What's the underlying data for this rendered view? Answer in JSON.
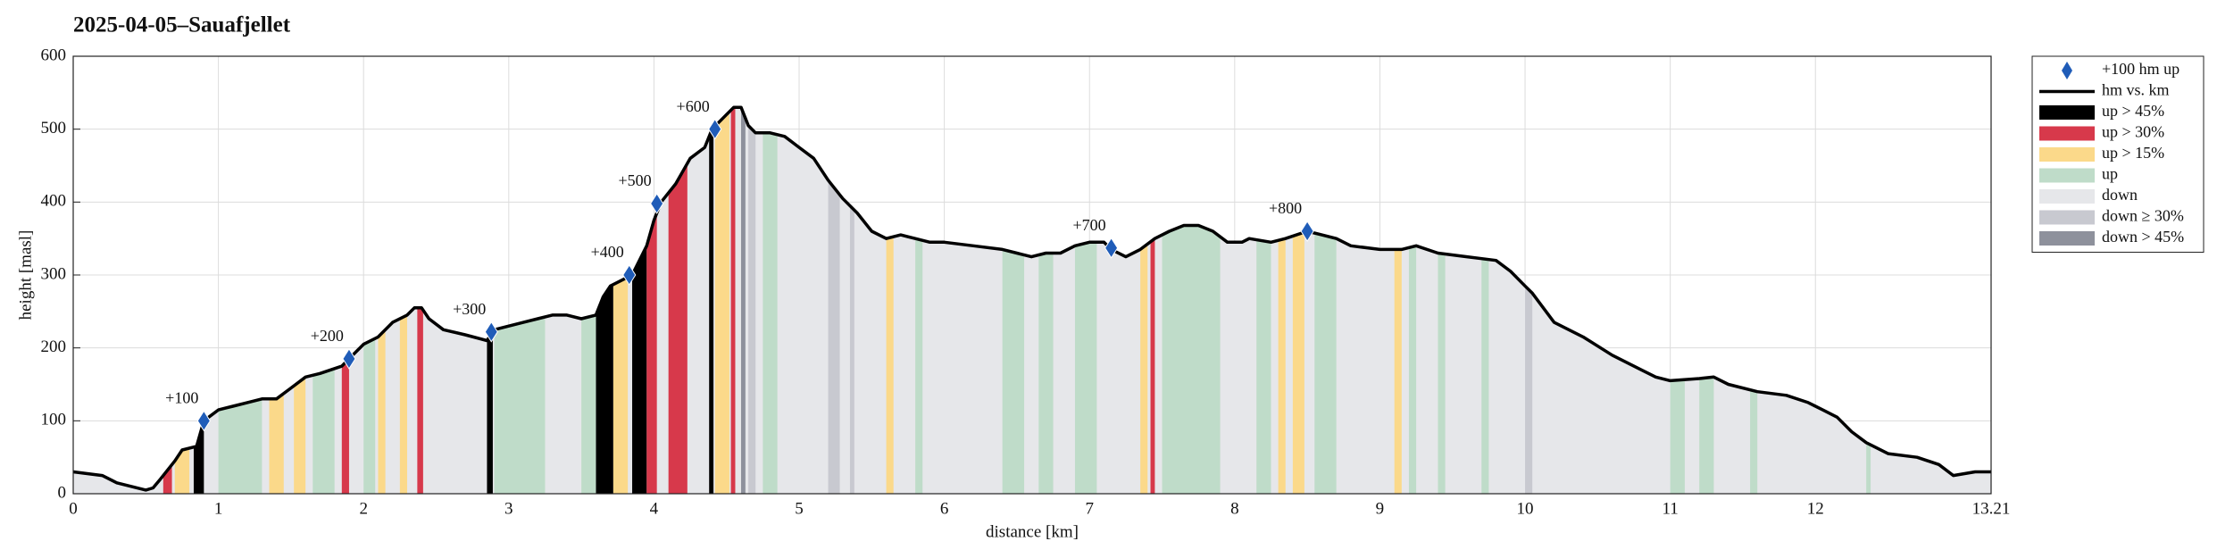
{
  "chart_data": {
    "type": "area",
    "title": "2025-04-05–Sauafjellet",
    "xlabel": "distance [km]",
    "ylabel": "height [masl]",
    "xlim": [
      0,
      13.21
    ],
    "ylim": [
      0,
      600
    ],
    "xticks": [
      0,
      1,
      2,
      3,
      4,
      5,
      6,
      7,
      8,
      9,
      10,
      11,
      12,
      13.21
    ],
    "yticks": [
      0,
      100,
      200,
      300,
      400,
      500,
      600
    ],
    "grid": true,
    "legend": "outside-right",
    "series": [
      {
        "name": "+100 hm up",
        "type": "scatter",
        "color": "#1f5cb8",
        "x": [
          0.9,
          1.9,
          2.88,
          3.83,
          4.02,
          4.42,
          7.15,
          8.5
        ],
        "values": [
          100,
          185,
          222,
          300,
          398,
          500,
          337,
          360
        ],
        "value_labels": [
          "+100",
          "+200",
          "+300",
          "+400",
          "+500",
          "+600",
          "+700",
          "+800"
        ]
      },
      {
        "name": "hm vs. km",
        "type": "line",
        "color": "#000000",
        "x": [
          0,
          0.2,
          0.3,
          0.5,
          0.55,
          0.6,
          0.7,
          0.75,
          0.85,
          0.9,
          1.0,
          1.1,
          1.2,
          1.3,
          1.4,
          1.5,
          1.6,
          1.7,
          1.85,
          1.9,
          2.0,
          2.1,
          2.2,
          2.3,
          2.35,
          2.4,
          2.45,
          2.55,
          2.7,
          2.85,
          2.9,
          3.0,
          3.1,
          3.2,
          3.3,
          3.4,
          3.5,
          3.6,
          3.65,
          3.7,
          3.8,
          3.85,
          3.95,
          4.0,
          4.05,
          4.15,
          4.25,
          4.35,
          4.4,
          4.5,
          4.55,
          4.6,
          4.65,
          4.7,
          4.8,
          4.9,
          5.0,
          5.1,
          5.2,
          5.3,
          5.4,
          5.5,
          5.6,
          5.7,
          5.8,
          5.9,
          6.0,
          6.2,
          6.4,
          6.5,
          6.6,
          6.7,
          6.8,
          6.9,
          7.0,
          7.1,
          7.15,
          7.25,
          7.35,
          7.45,
          7.55,
          7.65,
          7.75,
          7.85,
          7.95,
          8.05,
          8.1,
          8.25,
          8.35,
          8.5,
          8.6,
          8.7,
          8.8,
          9.0,
          9.15,
          9.25,
          9.4,
          9.6,
          9.8,
          9.9,
          10.0,
          10.05,
          10.2,
          10.4,
          10.6,
          10.8,
          10.9,
          11.0,
          11.2,
          11.3,
          11.4,
          11.6,
          11.8,
          11.95,
          12.05,
          12.15,
          12.25,
          12.35,
          12.5,
          12.7,
          12.85,
          12.95,
          13.1,
          13.21
        ],
        "values": [
          30,
          25,
          15,
          5,
          8,
          20,
          45,
          60,
          65,
          100,
          115,
          120,
          125,
          130,
          130,
          145,
          160,
          165,
          175,
          185,
          205,
          215,
          235,
          245,
          255,
          255,
          240,
          225,
          218,
          210,
          225,
          230,
          235,
          240,
          245,
          245,
          240,
          245,
          270,
          285,
          295,
          300,
          340,
          375,
          400,
          425,
          460,
          475,
          500,
          520,
          530,
          530,
          505,
          495,
          495,
          490,
          475,
          460,
          430,
          405,
          385,
          360,
          350,
          355,
          350,
          345,
          345,
          340,
          335,
          330,
          325,
          330,
          330,
          340,
          345,
          345,
          335,
          325,
          335,
          350,
          360,
          368,
          368,
          360,
          345,
          345,
          350,
          345,
          350,
          360,
          355,
          350,
          340,
          335,
          335,
          340,
          330,
          325,
          320,
          305,
          285,
          275,
          235,
          215,
          190,
          170,
          160,
          155,
          158,
          160,
          150,
          140,
          135,
          125,
          115,
          105,
          85,
          70,
          55,
          50,
          40,
          25,
          30,
          30
        ]
      }
    ],
    "bands": [
      {
        "name": "up > 45%",
        "color": "#000000",
        "ranges": [
          [
            0.83,
            0.9
          ],
          [
            2.85,
            2.89
          ],
          [
            3.6,
            3.72
          ],
          [
            3.85,
            3.95
          ],
          [
            4.38,
            4.41
          ]
        ]
      },
      {
        "name": "up > 30%",
        "color": "#d7394b",
        "ranges": [
          [
            0.62,
            0.68
          ],
          [
            1.85,
            1.9
          ],
          [
            2.37,
            2.41
          ],
          [
            3.95,
            4.02
          ],
          [
            4.1,
            4.23
          ],
          [
            4.53,
            4.56
          ],
          [
            7.42,
            7.45
          ]
        ]
      },
      {
        "name": "up > 15%",
        "color": "#fbd98a",
        "ranges": [
          [
            0.7,
            0.8
          ],
          [
            1.35,
            1.45
          ],
          [
            1.52,
            1.6
          ],
          [
            2.1,
            2.15
          ],
          [
            2.25,
            2.3
          ],
          [
            3.72,
            3.82
          ],
          [
            4.42,
            4.52
          ],
          [
            5.6,
            5.65
          ],
          [
            7.35,
            7.4
          ],
          [
            8.3,
            8.35
          ],
          [
            8.4,
            8.48
          ],
          [
            9.1,
            9.15
          ]
        ]
      },
      {
        "name": "up",
        "color": "#bfdcc9",
        "ranges": [
          [
            1.0,
            1.3
          ],
          [
            1.65,
            1.8
          ],
          [
            2.0,
            2.08
          ],
          [
            2.9,
            3.25
          ],
          [
            3.5,
            3.6
          ],
          [
            4.75,
            4.85
          ],
          [
            5.8,
            5.85
          ],
          [
            6.4,
            6.55
          ],
          [
            6.65,
            6.75
          ],
          [
            6.9,
            7.05
          ],
          [
            7.5,
            7.9
          ],
          [
            8.15,
            8.25
          ],
          [
            8.55,
            8.7
          ],
          [
            9.2,
            9.25
          ],
          [
            9.4,
            9.45
          ],
          [
            9.7,
            9.75
          ],
          [
            11.0,
            11.1
          ],
          [
            11.2,
            11.3
          ],
          [
            11.55,
            11.6
          ],
          [
            12.35,
            12.38
          ]
        ]
      },
      {
        "name": "down",
        "color": "#e6e7ea",
        "ranges": [
          [
            0,
            13.21
          ]
        ]
      },
      {
        "name": "down ≥ 30%",
        "color": "#c8c9d0",
        "ranges": [
          [
            4.65,
            4.7
          ],
          [
            5.2,
            5.28
          ],
          [
            5.35,
            5.38
          ],
          [
            10.0,
            10.05
          ]
        ]
      },
      {
        "name": "down > 45%",
        "color": "#8e919c",
        "ranges": [
          [
            4.6,
            4.63
          ]
        ]
      }
    ]
  }
}
